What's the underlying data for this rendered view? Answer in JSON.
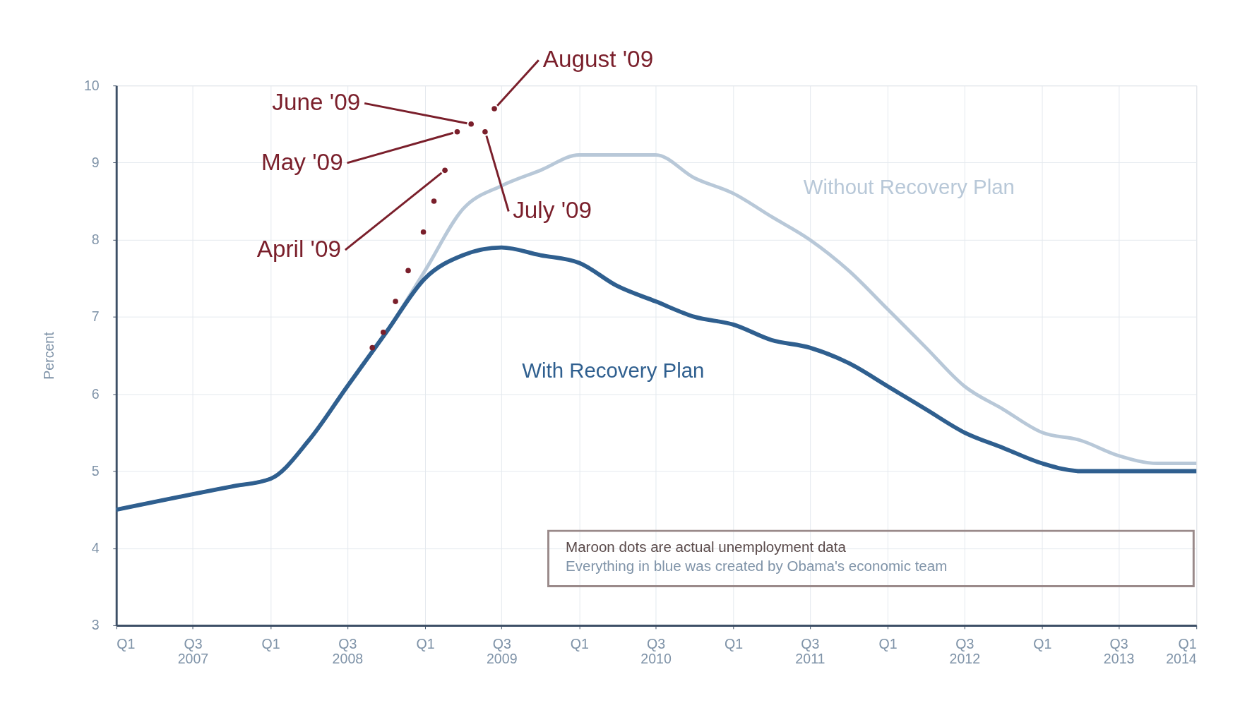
{
  "chart_data": {
    "type": "line",
    "ylabel": "Percent",
    "x": [
      "2007-01",
      "2007-04",
      "2007-07",
      "2007-10",
      "2008-01",
      "2008-04",
      "2008-07",
      "2008-10",
      "2009-01",
      "2009-04",
      "2009-07",
      "2009-10",
      "2010-01",
      "2010-04",
      "2010-07",
      "2010-10",
      "2011-01",
      "2011-04",
      "2011-07",
      "2011-10",
      "2012-01",
      "2012-04",
      "2012-07",
      "2012-10",
      "2013-01",
      "2013-04",
      "2013-07",
      "2013-10",
      "2014-01"
    ],
    "series": [
      {
        "name": "Without Recovery Plan",
        "color": "#b8c8d8",
        "values": [
          4.5,
          4.6,
          4.7,
          4.8,
          4.9,
          5.4,
          6.1,
          6.8,
          7.6,
          8.4,
          8.7,
          8.9,
          9.1,
          9.1,
          9.1,
          8.8,
          8.6,
          8.3,
          8.0,
          7.6,
          7.1,
          6.6,
          6.1,
          5.8,
          5.5,
          5.4,
          5.2,
          5.1,
          5.1
        ]
      },
      {
        "name": "With Recovery Plan",
        "color": "#2f5f8f",
        "values": [
          4.5,
          4.6,
          4.7,
          4.8,
          4.9,
          5.4,
          6.1,
          6.8,
          7.5,
          7.8,
          7.9,
          7.8,
          7.7,
          7.4,
          7.2,
          7.0,
          6.9,
          6.7,
          6.6,
          6.4,
          6.1,
          5.8,
          5.5,
          5.3,
          5.1,
          5.0,
          5.0,
          5.0,
          5.0
        ]
      },
      {
        "type": "scatter",
        "marker": "circle",
        "color": "#7a1f2b",
        "x": [
          "2008-08-29",
          "2008-09-24",
          "2008-10-23",
          "2008-11-22",
          "2008-12-28",
          "2009-01-22",
          "2009-02-17",
          "2009-03-18",
          "2009-04-20",
          "2009-05-23",
          "2009-06-14"
        ],
        "values": [
          6.6,
          6.8,
          7.2,
          7.6,
          8.1,
          8.5,
          8.9,
          9.4,
          9.5,
          9.4,
          9.7
        ]
      }
    ],
    "xlim": [
      "2007-01",
      "2014-01"
    ],
    "xticks": [
      {
        "value": "2007-01",
        "label": "Q1"
      },
      {
        "value": "2007-07",
        "label": "Q3 2007"
      },
      {
        "value": "2008-01",
        "label": "Q1"
      },
      {
        "value": "2008-07",
        "label": "Q3 2008"
      },
      {
        "value": "2009-01",
        "label": "Q1"
      },
      {
        "value": "2009-07",
        "label": "Q3 2009"
      },
      {
        "value": "2010-01",
        "label": "Q1"
      },
      {
        "value": "2010-07",
        "label": "Q3 2010"
      },
      {
        "value": "2011-01",
        "label": "Q1"
      },
      {
        "value": "2011-07",
        "label": "Q3 2011"
      },
      {
        "value": "2012-01",
        "label": "Q1"
      },
      {
        "value": "2012-07",
        "label": "Q3 2012"
      },
      {
        "value": "2013-01",
        "label": "Q1"
      },
      {
        "value": "2013-07",
        "label": "Q3 2013"
      },
      {
        "value": "2014-01",
        "label": "Q1 2014"
      }
    ],
    "ylim": [
      3,
      10
    ],
    "yticks": [
      3,
      4,
      5,
      6,
      7,
      8,
      9,
      10
    ],
    "grid": true,
    "legend": false,
    "marker": "none",
    "line_style": "solid",
    "annotations": [
      "Maroon dots are actual unemployment data",
      "Everything in blue was created by Obama's economic team",
      {
        "text": "April '09",
        "x": "2009-02-17",
        "y": 8.9
      },
      {
        "text": "May '09",
        "x": "2009-03-18",
        "y": 9.4
      },
      {
        "text": "June '09",
        "x": "2009-04-20",
        "y": 9.5
      },
      {
        "text": "July '09",
        "x": "2009-05-23",
        "y": 9.4
      },
      {
        "text": "August '09",
        "x": "2009-06-14",
        "y": 9.7
      }
    ]
  }
}
